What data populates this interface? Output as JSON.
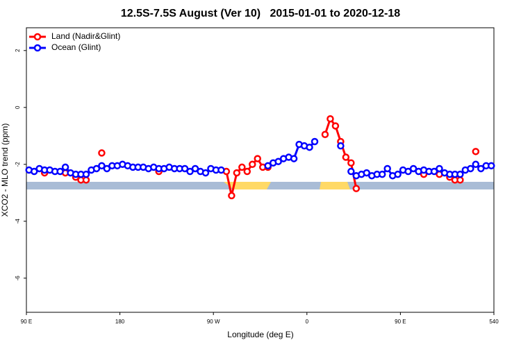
{
  "chart_data": {
    "type": "line",
    "title": "12.5S-7.5S August (Ver 10)   2015-01-01 to 2020-12-18",
    "x_label": "Longitude (deg E)",
    "y_label": "XCO2 - MLO trend (ppm)",
    "x": [
      92.5,
      97.5,
      102.5,
      107.5,
      112.5,
      117.5,
      122.5,
      127.5,
      132.5,
      137.5,
      142.5,
      147.5,
      152.5,
      157.5,
      162.5,
      167.5,
      172.5,
      177.5,
      182.5,
      187.5,
      192.5,
      197.5,
      202.5,
      207.5,
      212.5,
      217.5,
      222.5,
      227.5,
      232.5,
      237.5,
      242.5,
      247.5,
      252.5,
      257.5,
      262.5,
      267.5,
      272.5,
      277.5,
      282.5,
      287.5,
      292.5,
      297.5,
      302.5,
      307.5,
      312.5,
      317.5,
      322.5,
      327.5,
      332.5,
      337.5,
      342.5,
      347.5,
      352.5,
      357.5,
      362.5,
      367.5,
      372.5,
      377.5,
      382.5,
      387.5,
      392.5,
      397.5,
      402.5,
      407.5,
      412.5,
      417.5,
      422.5,
      427.5,
      432.5,
      437.5,
      442.5,
      447.5,
      452.5,
      457.5,
      462.5,
      467.5,
      472.5,
      477.5,
      482.5,
      487.5,
      492.5,
      497.5,
      502.5,
      507.5,
      512.5,
      517.5,
      522.5,
      527.5,
      532.5,
      537.5
    ],
    "series": [
      {
        "name": "Land (Nadir&Glint)",
        "color": "#ff0000",
        "values": [
          null,
          null,
          null,
          -2.3,
          null,
          null,
          null,
          -2.3,
          null,
          -2.45,
          -2.55,
          -2.55,
          null,
          null,
          -1.6,
          null,
          null,
          null,
          null,
          null,
          null,
          null,
          null,
          null,
          null,
          -2.25,
          null,
          null,
          null,
          null,
          null,
          null,
          null,
          null,
          null,
          null,
          null,
          null,
          -2.25,
          -3.1,
          -2.3,
          -2.1,
          -2.25,
          -2.0,
          -1.8,
          -2.1,
          -2.1,
          null,
          null,
          null,
          null,
          null,
          null,
          null,
          null,
          null,
          null,
          -0.95,
          -0.4,
          -0.65,
          -1.2,
          -1.75,
          -1.95,
          -2.85,
          null,
          null,
          null,
          null,
          null,
          null,
          null,
          null,
          null,
          null,
          null,
          null,
          -2.35,
          null,
          null,
          -2.35,
          null,
          -2.45,
          -2.55,
          -2.55,
          null,
          null,
          -1.55,
          null,
          null,
          null
        ]
      },
      {
        "name": "Ocean (Glint)",
        "color": "#0000ff",
        "values": [
          -2.2,
          -2.25,
          -2.15,
          -2.2,
          -2.2,
          -2.25,
          -2.25,
          -2.1,
          -2.3,
          -2.35,
          -2.35,
          -2.35,
          -2.2,
          -2.15,
          -2.05,
          -2.15,
          -2.05,
          -2.05,
          -2.0,
          -2.05,
          -2.1,
          -2.1,
          -2.1,
          -2.15,
          -2.1,
          -2.15,
          -2.15,
          -2.1,
          -2.15,
          -2.15,
          -2.15,
          -2.25,
          -2.15,
          -2.25,
          -2.3,
          -2.15,
          -2.2,
          -2.2,
          null,
          null,
          null,
          null,
          null,
          null,
          null,
          null,
          -2.05,
          -1.95,
          -1.9,
          -1.8,
          -1.75,
          -1.8,
          -1.3,
          -1.35,
          -1.4,
          -1.2,
          null,
          null,
          null,
          null,
          -1.35,
          null,
          -2.25,
          -2.4,
          -2.35,
          -2.3,
          -2.4,
          -2.35,
          -2.35,
          -2.15,
          -2.4,
          -2.35,
          -2.2,
          -2.25,
          -2.15,
          -2.25,
          -2.2,
          -2.25,
          -2.25,
          -2.15,
          -2.3,
          -2.35,
          -2.35,
          -2.35,
          -2.2,
          -2.15,
          -2.0,
          -2.15,
          -2.05,
          -2.05
        ]
      }
    ],
    "xlim": [
      90,
      540
    ],
    "xticks": [
      {
        "value": 90,
        "label": "90 E"
      },
      180,
      {
        "value": 270,
        "label": "90 W"
      },
      {
        "value": 360,
        "label": "0"
      },
      {
        "value": 450,
        "label": "90 E"
      },
      540
    ],
    "ylim": [
      -7.2,
      2.8
    ],
    "yticks": [
      2,
      0,
      -2,
      -4,
      -6
    ],
    "legend": "top-left"
  }
}
